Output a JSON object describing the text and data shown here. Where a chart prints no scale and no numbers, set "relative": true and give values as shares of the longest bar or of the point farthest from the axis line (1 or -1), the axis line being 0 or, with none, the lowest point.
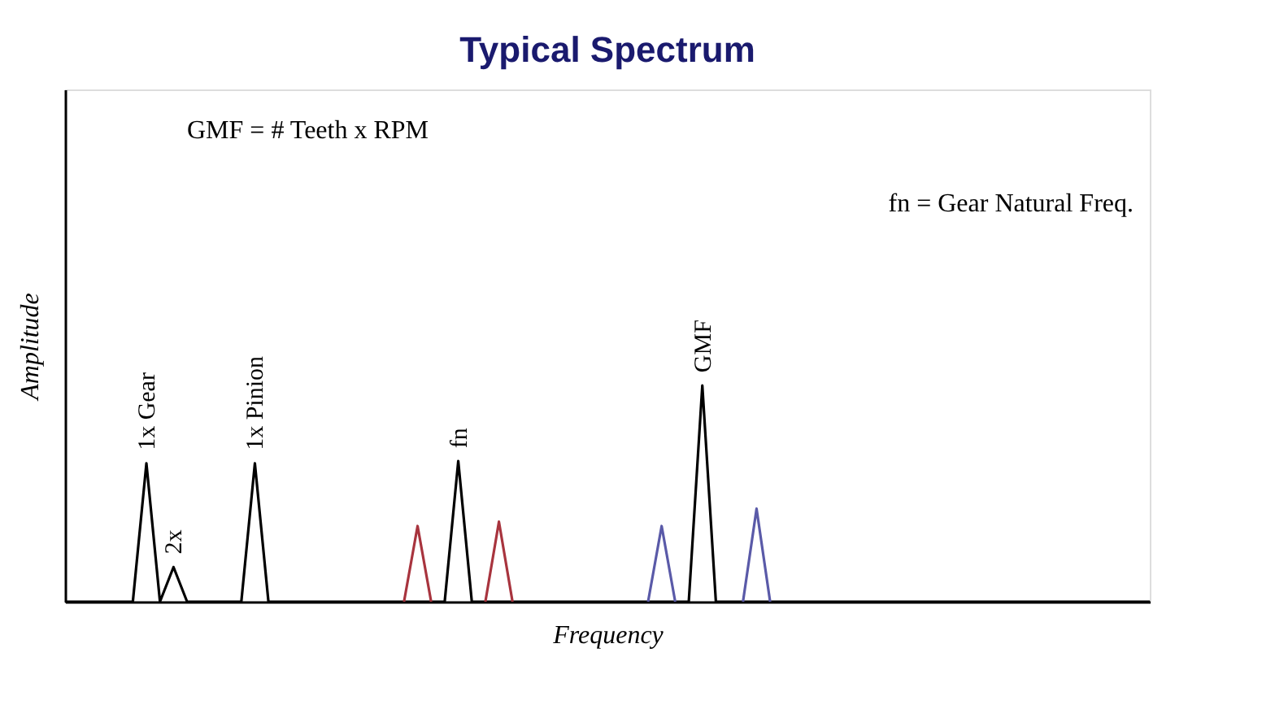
{
  "chart_data": {
    "type": "line",
    "title": "Typical Spectrum",
    "xlabel": "Frequency",
    "ylabel": "Amplitude",
    "relative": true,
    "legend": false,
    "grid": false,
    "tick_labels": false,
    "categories": [
      null,
      null,
      null,
      null,
      null,
      null,
      null,
      null,
      null,
      null,
      null,
      null,
      null,
      null,
      null,
      null,
      null,
      null,
      null,
      null,
      null,
      null,
      null,
      null,
      null,
      null,
      null,
      null,
      null,
      null,
      null,
      null,
      null,
      null,
      null,
      null,
      null,
      null,
      null,
      null,
      null,
      null,
      null,
      null,
      null,
      null,
      null,
      null,
      null,
      null,
      null,
      null,
      null,
      null,
      null,
      null,
      null,
      null,
      null,
      null,
      null,
      null,
      null,
      null,
      null,
      null,
      null,
      null,
      null,
      null,
      null,
      null,
      null,
      null,
      null,
      null,
      null,
      null,
      null,
      null,
      null
    ],
    "series": [
      {
        "color": "#000000",
        "values": [
          0,
          0,
          0,
          0,
          0,
          0,
          0.64,
          0,
          0.16,
          0,
          0,
          0,
          0,
          0,
          0.64,
          0,
          0,
          0,
          0,
          0,
          0,
          0,
          0,
          0,
          0,
          0,
          0,
          0,
          0,
          0.65,
          0,
          0,
          0,
          0,
          0,
          0,
          0,
          0,
          0,
          0,
          0,
          0,
          0,
          0,
          0,
          0,
          0,
          1,
          0,
          0,
          0,
          0,
          0,
          0,
          0,
          0,
          0,
          0,
          0,
          0,
          0,
          0,
          0,
          0,
          0,
          0,
          0,
          0,
          0,
          0,
          0,
          0,
          0,
          0,
          0,
          0,
          0,
          0,
          0,
          0,
          0
        ]
      },
      {
        "color": "#a8343e",
        "values": [
          null,
          null,
          null,
          null,
          null,
          null,
          null,
          null,
          null,
          null,
          null,
          null,
          null,
          null,
          null,
          null,
          null,
          null,
          null,
          null,
          null,
          null,
          null,
          null,
          null,
          0,
          0.35,
          0,
          null,
          null,
          null,
          null,
          null,
          null,
          null,
          null,
          null,
          null,
          null,
          null,
          null,
          null,
          null,
          null,
          null,
          null,
          null,
          null,
          null,
          null,
          null,
          null,
          null,
          null,
          null,
          null,
          null,
          null,
          null,
          null,
          null,
          null,
          null,
          null,
          null,
          null,
          null,
          null,
          null,
          null,
          null,
          null,
          null,
          null,
          null,
          null,
          null,
          null,
          null,
          null,
          null
        ]
      },
      {
        "color": "#a8343e",
        "values": [
          null,
          null,
          null,
          null,
          null,
          null,
          null,
          null,
          null,
          null,
          null,
          null,
          null,
          null,
          null,
          null,
          null,
          null,
          null,
          null,
          null,
          null,
          null,
          null,
          null,
          null,
          null,
          null,
          null,
          null,
          null,
          0,
          0.37,
          0,
          null,
          null,
          null,
          null,
          null,
          null,
          null,
          null,
          null,
          null,
          null,
          null,
          null,
          null,
          null,
          null,
          null,
          null,
          null,
          null,
          null,
          null,
          null,
          null,
          null,
          null,
          null,
          null,
          null,
          null,
          null,
          null,
          null,
          null,
          null,
          null,
          null,
          null,
          null,
          null,
          null,
          null,
          null,
          null,
          null,
          null,
          null
        ]
      },
      {
        "color": "#5a5aa8",
        "values": [
          null,
          null,
          null,
          null,
          null,
          null,
          null,
          null,
          null,
          null,
          null,
          null,
          null,
          null,
          null,
          null,
          null,
          null,
          null,
          null,
          null,
          null,
          null,
          null,
          null,
          null,
          null,
          null,
          null,
          null,
          null,
          null,
          null,
          null,
          null,
          null,
          null,
          null,
          null,
          null,
          null,
          null,
          null,
          0,
          0.35,
          0,
          null,
          null,
          null,
          null,
          null,
          null,
          null,
          null,
          null,
          null,
          null,
          null,
          null,
          null,
          null,
          null,
          null,
          null,
          null,
          null,
          null,
          null,
          null,
          null,
          null,
          null,
          null,
          null,
          null,
          null,
          null,
          null,
          null,
          null,
          null
        ]
      },
      {
        "color": "#5a5aa8",
        "values": [
          null,
          null,
          null,
          null,
          null,
          null,
          null,
          null,
          null,
          null,
          null,
          null,
          null,
          null,
          null,
          null,
          null,
          null,
          null,
          null,
          null,
          null,
          null,
          null,
          null,
          null,
          null,
          null,
          null,
          null,
          null,
          null,
          null,
          null,
          null,
          null,
          null,
          null,
          null,
          null,
          null,
          null,
          null,
          null,
          null,
          null,
          null,
          null,
          null,
          null,
          0,
          0.43,
          0,
          null,
          null,
          null,
          null,
          null,
          null,
          null,
          null,
          null,
          null,
          null,
          null,
          null,
          null,
          null,
          null,
          null,
          null,
          null,
          null,
          null,
          null,
          null,
          null,
          null,
          null,
          null,
          null
        ]
      }
    ],
    "annotations": [
      "GMF = # Teeth x RPM",
      "fn = Gear Natural Freq.",
      {
        "text": "1x Gear",
        "y": 0.64
      },
      {
        "text": "2x",
        "y": 0.16
      },
      {
        "text": "1x Pinion",
        "y": 0.64
      },
      {
        "text": "fn",
        "y": 0.65
      },
      {
        "text": "GMF",
        "y": 1
      }
    ]
  }
}
